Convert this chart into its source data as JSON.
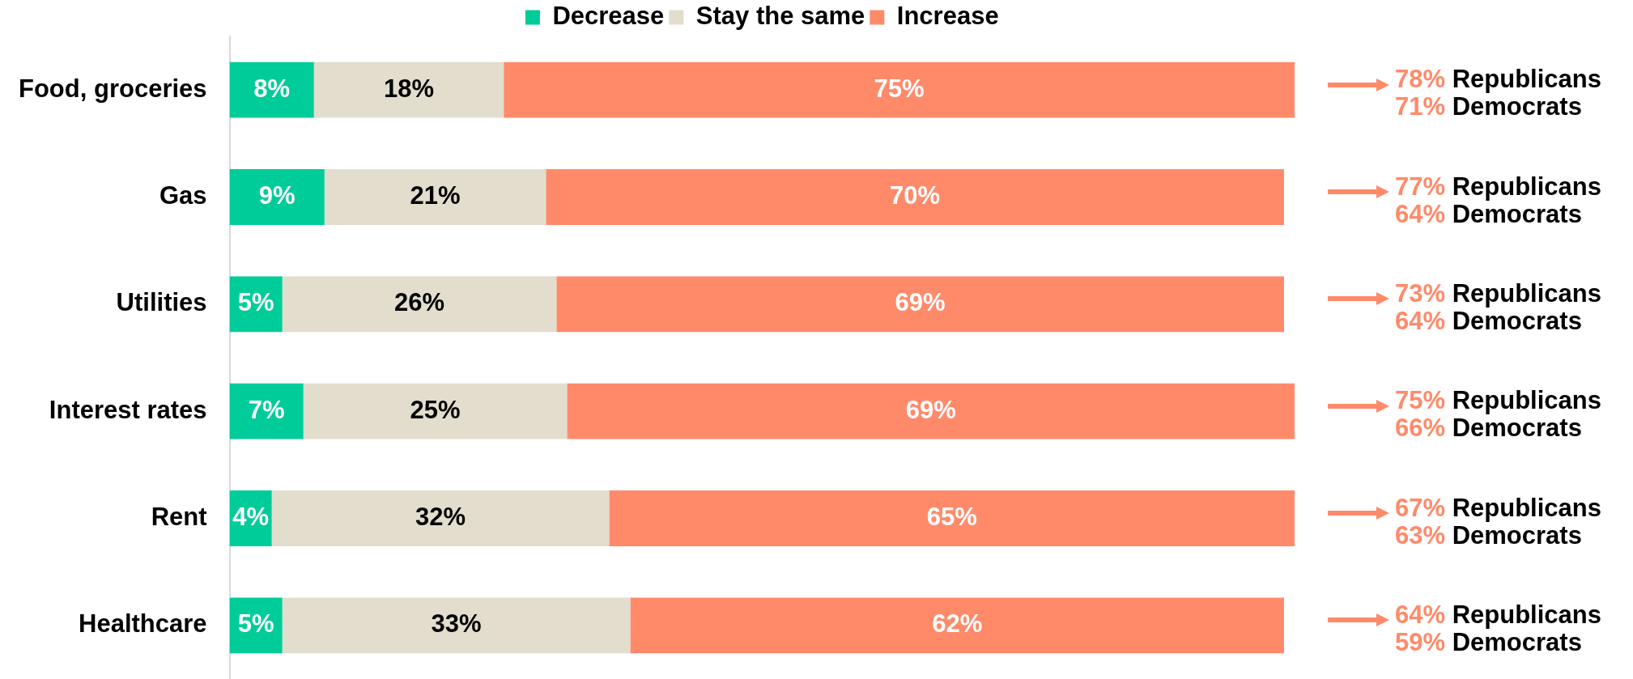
{
  "chart_data": {
    "type": "bar",
    "orientation": "horizontal",
    "stacked": true,
    "categories": [
      "Food, groceries",
      "Gas",
      "Utilities",
      "Interest rates",
      "Rent",
      "Healthcare"
    ],
    "series": [
      {
        "name": "Decrease",
        "color": "#00cc99",
        "values": [
          8,
          9,
          5,
          7,
          4,
          5
        ],
        "value_labels": [
          "8%",
          "9%",
          "5%",
          "7%",
          "4%",
          "5%"
        ]
      },
      {
        "name": "Stay the same",
        "color": "#e2ddcc",
        "values": [
          18,
          21,
          26,
          25,
          32,
          33
        ],
        "value_labels": [
          "18%",
          "21%",
          "26%",
          "25%",
          "32%",
          "33%"
        ]
      },
      {
        "name": "Increase",
        "color": "#ff8a6a",
        "values": [
          75,
          70,
          69,
          69,
          65,
          62
        ],
        "value_labels": [
          "75%",
          "70%",
          "69%",
          "69%",
          "65%",
          "62%"
        ]
      }
    ],
    "xlim": [
      0,
      101
    ],
    "legend": "top",
    "tick_labels": "y",
    "annotations": [
      "78% Republicans",
      "71% Democrats",
      "77% Republicans",
      "64% Democrats",
      "73% Republicans",
      "64% Democrats",
      "75% Republicans",
      "66% Democrats",
      "67% Republicans",
      "63% Democrats",
      "64% Republicans",
      "59% Democrats"
    ]
  }
}
